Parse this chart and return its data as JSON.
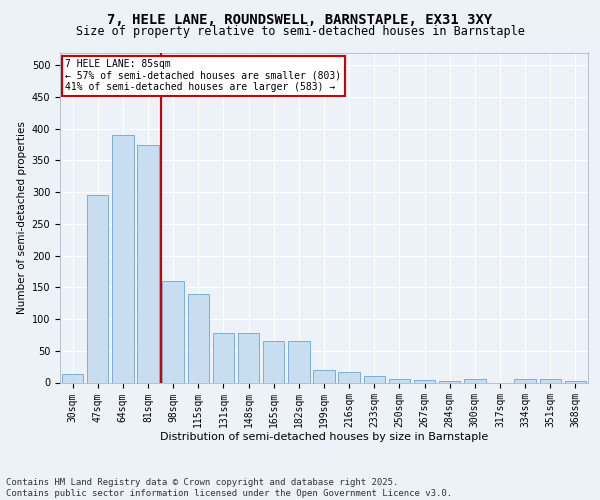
{
  "title1": "7, HELE LANE, ROUNDSWELL, BARNSTAPLE, EX31 3XY",
  "title2": "Size of property relative to semi-detached houses in Barnstaple",
  "xlabel": "Distribution of semi-detached houses by size in Barnstaple",
  "ylabel": "Number of semi-detached properties",
  "footer": "Contains HM Land Registry data © Crown copyright and database right 2025.\nContains public sector information licensed under the Open Government Licence v3.0.",
  "categories": [
    "30sqm",
    "47sqm",
    "64sqm",
    "81sqm",
    "98sqm",
    "115sqm",
    "131sqm",
    "148sqm",
    "165sqm",
    "182sqm",
    "199sqm",
    "216sqm",
    "233sqm",
    "250sqm",
    "267sqm",
    "284sqm",
    "300sqm",
    "317sqm",
    "334sqm",
    "351sqm",
    "368sqm"
  ],
  "values": [
    13,
    295,
    390,
    375,
    160,
    140,
    78,
    78,
    65,
    65,
    20,
    17,
    10,
    5,
    4,
    2,
    5,
    0,
    5,
    5,
    2
  ],
  "bar_color": "#c9ddf0",
  "bar_edge_color": "#7bafd4",
  "vline_color": "#cc0000",
  "annotation_text": "7 HELE LANE: 85sqm\n← 57% of semi-detached houses are smaller (803)\n41% of semi-detached houses are larger (583) →",
  "annotation_box_color": "#ffffff",
  "annotation_box_edge": "#cc0000",
  "ylim": [
    0,
    520
  ],
  "yticks": [
    0,
    50,
    100,
    150,
    200,
    250,
    300,
    350,
    400,
    450,
    500
  ],
  "background_color": "#edf1f8",
  "grid_color": "#ffffff",
  "title1_fontsize": 10,
  "title2_fontsize": 8.5,
  "tick_fontsize": 7,
  "xlabel_fontsize": 8,
  "ylabel_fontsize": 7.5,
  "footer_fontsize": 6.5
}
